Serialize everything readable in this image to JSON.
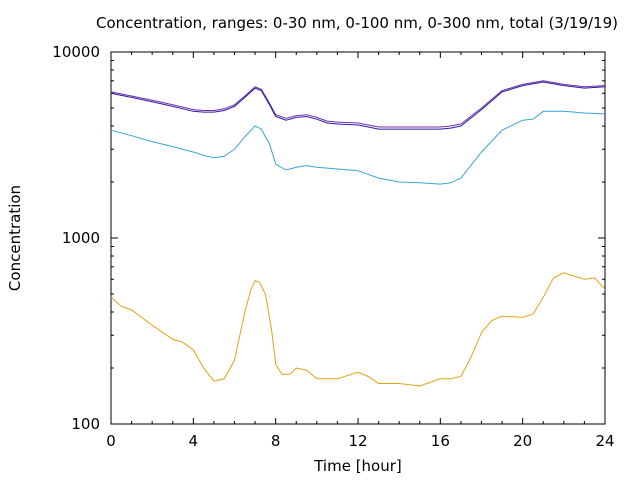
{
  "chart_data": {
    "type": "line",
    "title": "Concentration, ranges: 0-30 nm, 0-100 nm, 0-300 nm, total (3/19/19)",
    "xlabel": "Time [hour]",
    "ylabel": "Concentration",
    "xlim": [
      0,
      24
    ],
    "ylim": [
      100,
      10000
    ],
    "yscale": "log",
    "grid": false,
    "xticks": [
      0,
      4,
      8,
      12,
      16,
      20,
      24
    ],
    "xtick_labels": [
      "0",
      "4",
      "8",
      "12",
      "16",
      "20",
      "24"
    ],
    "yticks": [
      100,
      1000,
      10000
    ],
    "ytick_labels": [
      "100",
      "1000",
      "10000"
    ],
    "colors": {
      "total": "#7030a0",
      "range_0_300": "#2a1aa8",
      "range_0_100": "#37a5d8",
      "range_0_30": "#e6a012"
    },
    "series": [
      {
        "key": "total",
        "x": [
          0,
          1,
          2,
          3,
          4,
          4.5,
          5,
          5.5,
          6,
          6.5,
          7,
          7.3,
          7.7,
          8,
          8.5,
          9,
          9.5,
          10,
          10.5,
          11,
          12,
          12.5,
          13,
          14,
          15,
          16,
          16.5,
          17,
          18,
          19,
          20,
          21,
          22,
          23,
          24
        ],
        "y": [
          6100,
          5800,
          5500,
          5200,
          4900,
          4850,
          4850,
          4950,
          5200,
          5800,
          6500,
          6300,
          5300,
          4600,
          4400,
          4550,
          4600,
          4450,
          4250,
          4200,
          4150,
          4050,
          3950,
          3950,
          3950,
          3950,
          4000,
          4100,
          5000,
          6200,
          6700,
          7000,
          6700,
          6500,
          6600
        ]
      },
      {
        "key": "range_0_300",
        "x": [
          0,
          1,
          2,
          3,
          4,
          4.5,
          5,
          5.5,
          6,
          6.5,
          7,
          7.3,
          7.7,
          8,
          8.5,
          9,
          9.5,
          10,
          10.5,
          11,
          12,
          12.5,
          13,
          14,
          15,
          16,
          16.5,
          17,
          18,
          19,
          20,
          21,
          22,
          23,
          24
        ],
        "y": [
          6000,
          5700,
          5400,
          5100,
          4800,
          4750,
          4750,
          4850,
          5100,
          5700,
          6400,
          6200,
          5200,
          4500,
          4300,
          4450,
          4500,
          4350,
          4150,
          4100,
          4050,
          3950,
          3850,
          3850,
          3850,
          3850,
          3900,
          4000,
          4900,
          6100,
          6600,
          6900,
          6600,
          6400,
          6500
        ]
      },
      {
        "key": "range_0_100",
        "x": [
          0,
          1,
          2,
          3,
          4,
          4.5,
          5,
          5.5,
          6,
          6.5,
          7,
          7.3,
          7.7,
          8,
          8.5,
          9,
          9.5,
          10,
          11,
          12,
          13,
          14,
          15,
          16,
          16.5,
          17,
          18,
          19,
          20,
          20.5,
          21,
          22,
          23,
          24
        ],
        "y": [
          3800,
          3550,
          3300,
          3100,
          2900,
          2780,
          2700,
          2750,
          3000,
          3500,
          4000,
          3850,
          3200,
          2500,
          2320,
          2400,
          2450,
          2400,
          2350,
          2300,
          2100,
          2000,
          1980,
          1950,
          1980,
          2100,
          2900,
          3800,
          4300,
          4350,
          4800,
          4800,
          4700,
          4650
        ]
      },
      {
        "key": "range_0_30",
        "x": [
          0,
          0.5,
          1,
          2,
          3,
          3.5,
          4,
          4.5,
          5,
          5.5,
          6,
          6.5,
          6.8,
          7,
          7.2,
          7.5,
          7.8,
          8,
          8.3,
          8.7,
          9,
          9.5,
          10,
          11,
          12,
          12.5,
          13,
          14,
          15,
          16,
          16.5,
          17,
          17.5,
          18,
          18.5,
          19,
          20,
          20.5,
          21,
          21.5,
          22,
          23,
          23.5,
          24
        ],
        "y": [
          480,
          430,
          410,
          340,
          285,
          275,
          250,
          200,
          170,
          175,
          220,
          400,
          530,
          590,
          580,
          500,
          320,
          210,
          185,
          185,
          200,
          195,
          175,
          175,
          190,
          180,
          165,
          165,
          160,
          175,
          175,
          180,
          230,
          310,
          360,
          380,
          375,
          390,
          480,
          610,
          650,
          600,
          610,
          530
        ]
      }
    ]
  }
}
